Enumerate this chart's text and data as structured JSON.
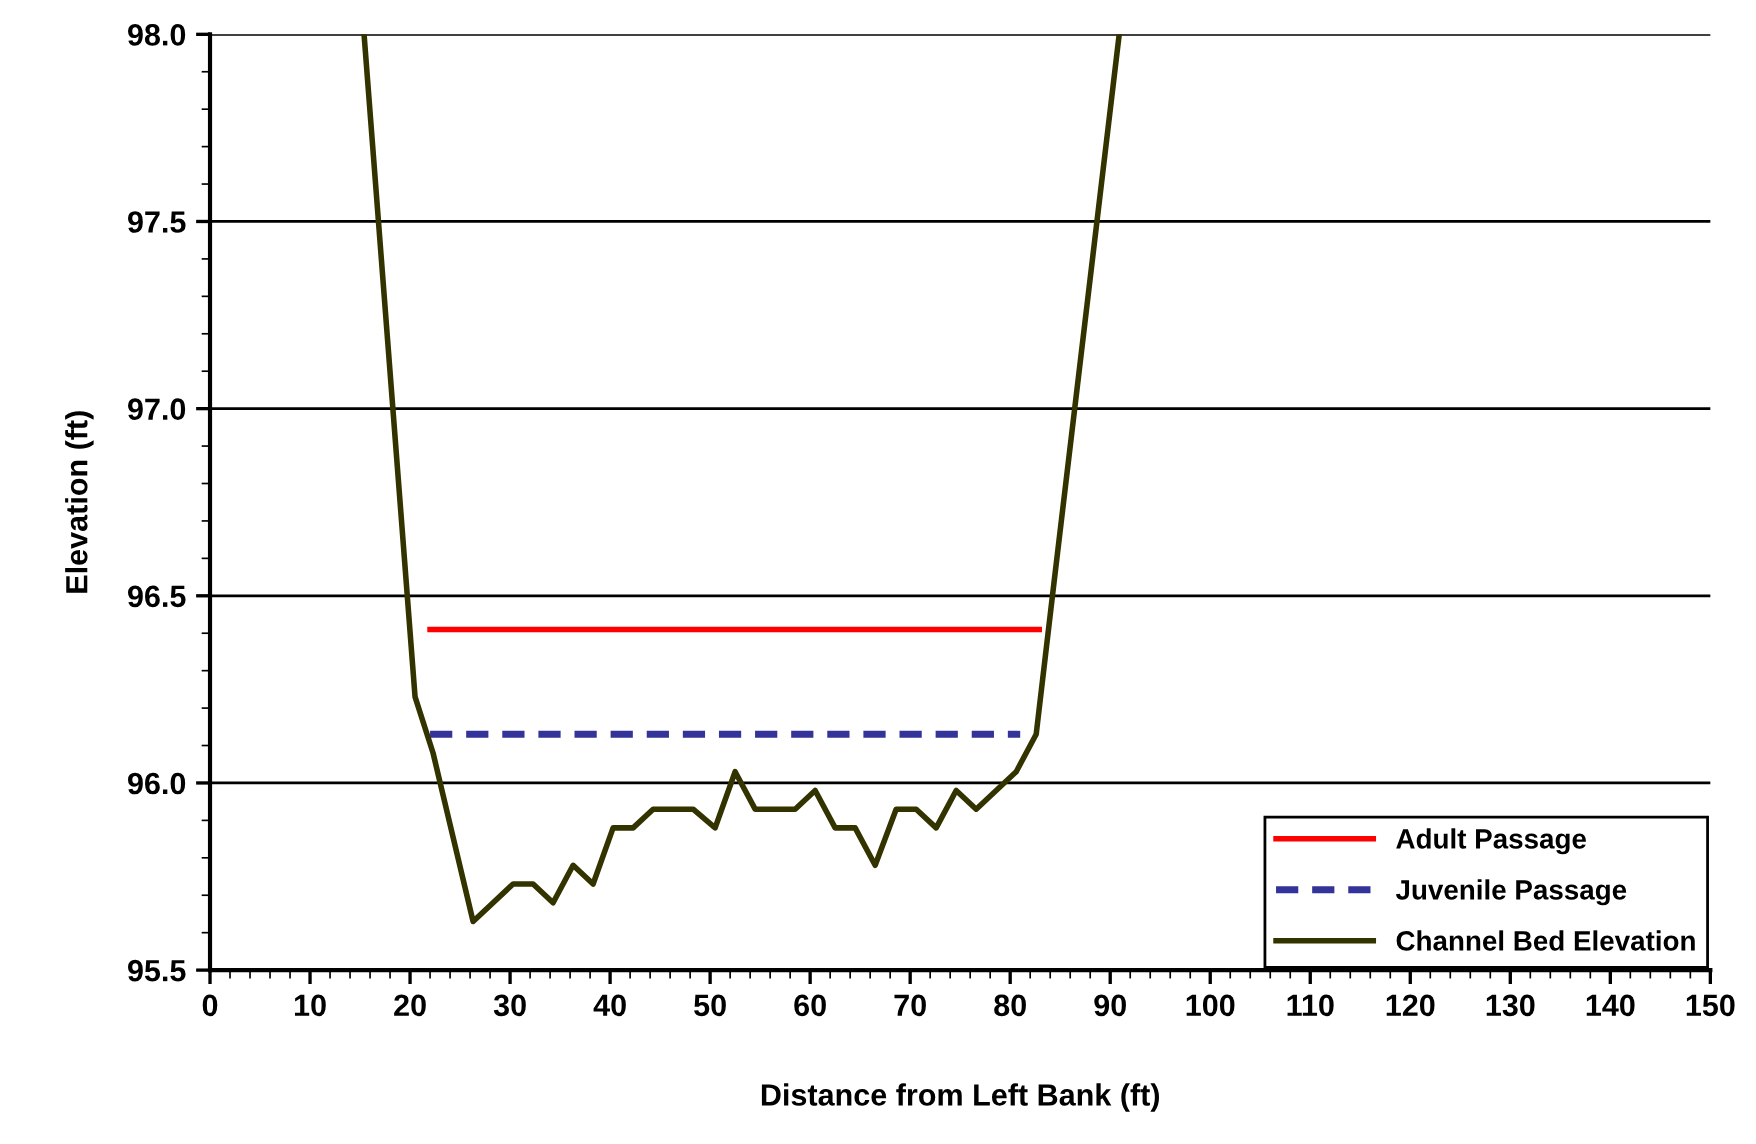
{
  "chart_data": {
    "type": "line",
    "xlabel": "Distance from Left Bank (ft)",
    "ylabel": "Elevation (ft)",
    "xlim": [
      0,
      150
    ],
    "xticks": [
      0,
      10,
      20,
      30,
      40,
      50,
      60,
      70,
      80,
      90,
      100,
      110,
      120,
      130,
      140,
      150
    ],
    "ylim": [
      95.5,
      98.0
    ],
    "yticks": [
      {
        "value": 95.5,
        "label": "95.5"
      },
      {
        "value": 96.0,
        "label": "96.0"
      },
      {
        "value": 96.5,
        "label": "96.5"
      },
      {
        "value": 97.0,
        "label": "97.0"
      },
      {
        "value": 97.5,
        "label": "97.5"
      },
      {
        "value": 98.0,
        "label": "98.0"
      }
    ],
    "grid": "y",
    "legend": "bottom right",
    "marker": "none",
    "series": [
      {
        "name": "Adult Passage",
        "color": "#ff0000",
        "line_style": "solid",
        "x": [
          22,
          82.9
        ],
        "values": [
          96.41,
          96.41
        ]
      },
      {
        "name": "Juvenile Passage",
        "color": "#333399",
        "line_style": "dashed",
        "x": [
          22,
          81
        ],
        "values": [
          96.13,
          96.13
        ]
      },
      {
        "name": "Channel Bed Elevation",
        "color": "#333300",
        "line_style": "solid",
        "x": [
          15.4,
          20.5,
          22.3,
          26.3,
          30.3,
          32.3,
          34.3,
          36.3,
          38.3,
          40.3,
          42.3,
          44.3,
          48.3,
          50.5,
          52.5,
          54.5,
          58.5,
          60.5,
          62.5,
          64.5,
          66.5,
          68.6,
          70.6,
          72.6,
          74.6,
          76.6,
          80.6,
          82.6,
          84.4,
          90.9
        ],
        "values": [
          98.0,
          96.23,
          96.08,
          95.63,
          95.73,
          95.73,
          95.68,
          95.78,
          95.73,
          95.88,
          95.88,
          95.93,
          95.93,
          95.88,
          96.03,
          95.93,
          95.93,
          95.98,
          95.88,
          95.88,
          95.78,
          95.93,
          95.93,
          95.88,
          95.98,
          95.93,
          96.03,
          96.13,
          96.54,
          98.0
        ]
      }
    ]
  }
}
